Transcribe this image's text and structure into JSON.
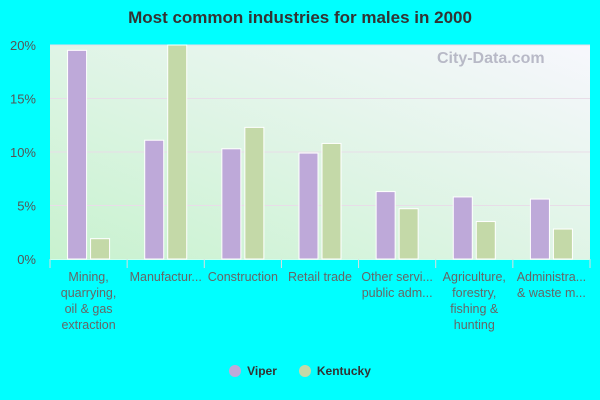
{
  "chart_data": {
    "type": "bar",
    "title": "Most common industries for males in 2000",
    "categories": [
      [
        "Mining,",
        "quarrying,",
        "oil & gas",
        "extraction"
      ],
      [
        "Manufactur..."
      ],
      [
        "Construction"
      ],
      [
        "Retail trade"
      ],
      [
        "Other servi...",
        "public adm..."
      ],
      [
        "Agriculture,",
        "forestry,",
        "fishing &",
        "hunting"
      ],
      [
        "Administra...",
        "& waste m..."
      ]
    ],
    "series": [
      {
        "name": "Viper",
        "color": "#bea9d9",
        "values": [
          19.5,
          11.1,
          10.3,
          9.9,
          6.3,
          5.8,
          5.6
        ]
      },
      {
        "name": "Kentucky",
        "color": "#c4d9a8",
        "values": [
          1.9,
          20.1,
          12.3,
          10.8,
          4.7,
          3.5,
          2.8
        ]
      }
    ],
    "yticks": [
      "0%",
      "5%",
      "10%",
      "15%",
      "20%"
    ],
    "ylim": [
      0,
      20
    ],
    "grid": true,
    "legend": "bottom",
    "watermark": "City-Data.com"
  }
}
